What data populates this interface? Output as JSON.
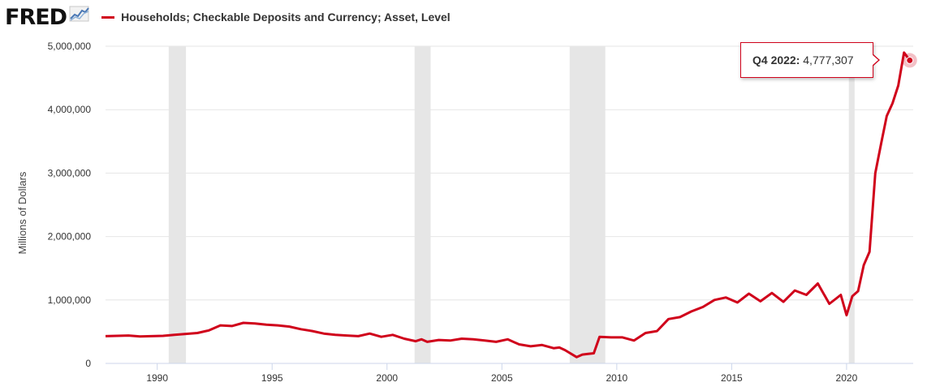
{
  "header": {
    "logo_text": "FRED",
    "series_label": "Households; Checkable Deposits and Currency; Asset, Level",
    "series_color": "#d0021b"
  },
  "tooltip": {
    "period": "Q4 2022:",
    "value": "4,777,307"
  },
  "chart_data": {
    "type": "line",
    "ylabel": "Millions of Dollars",
    "ylim": [
      0,
      5000000
    ],
    "xlim": [
      1987.75,
      2022.9
    ],
    "y_ticks": [
      0,
      1000000,
      2000000,
      3000000,
      4000000,
      5000000
    ],
    "y_tick_labels": [
      "0",
      "1,000,000",
      "2,000,000",
      "3,000,000",
      "4,000,000",
      "5,000,000"
    ],
    "x_ticks": [
      1990,
      1995,
      2000,
      2005,
      2010,
      2015,
      2020
    ],
    "x_tick_labels": [
      "1990",
      "1995",
      "2000",
      "2005",
      "2010",
      "2015",
      "2020"
    ],
    "grid": true,
    "line_color": "#d0021b",
    "recession_color": "#e6e6e6",
    "recessions": [
      [
        1990.5,
        1991.25
      ],
      [
        2001.2,
        2001.9
      ],
      [
        2007.95,
        2009.5
      ],
      [
        2020.1,
        2020.35
      ]
    ],
    "series": [
      {
        "x": [
          1987.75,
          1988.25,
          1988.75,
          1989.25,
          1989.75,
          1990.25,
          1990.75,
          1991.25,
          1991.75,
          1992.25,
          1992.75,
          1993.25,
          1993.75,
          1994.25,
          1994.75,
          1995.25,
          1995.75,
          1996.25,
          1996.75,
          1997.25,
          1997.75,
          1998.25,
          1998.75,
          1999.25,
          1999.75,
          2000.25,
          2000.75,
          2001.25,
          2001.5,
          2001.75,
          2002.25,
          2002.75,
          2003.25,
          2003.75,
          2004.25,
          2004.75,
          2005.25,
          2005.75,
          2006.25,
          2006.75,
          2007.25,
          2007.5,
          2007.75,
          2008.25,
          2008.5,
          2008.75,
          2009.0,
          2009.25,
          2009.75,
          2010.25,
          2010.75,
          2011.25,
          2011.75,
          2012.25,
          2012.75,
          2013.25,
          2013.75,
          2014.25,
          2014.75,
          2015.25,
          2015.75,
          2016.25,
          2016.75,
          2017.25,
          2017.75,
          2018.25,
          2018.75,
          2019.25,
          2019.5,
          2019.75,
          2020.0,
          2020.25,
          2020.5,
          2020.75,
          2021.0,
          2021.25,
          2021.5,
          2021.75,
          2022.0,
          2022.25,
          2022.5,
          2022.75
        ],
        "y": [
          430000,
          435000,
          440000,
          425000,
          430000,
          435000,
          450000,
          465000,
          480000,
          520000,
          600000,
          590000,
          640000,
          630000,
          610000,
          600000,
          580000,
          540000,
          510000,
          470000,
          450000,
          440000,
          430000,
          470000,
          420000,
          450000,
          390000,
          350000,
          380000,
          340000,
          370000,
          360000,
          390000,
          380000,
          360000,
          340000,
          380000,
          300000,
          270000,
          290000,
          240000,
          250000,
          210000,
          100000,
          140000,
          150000,
          160000,
          420000,
          410000,
          410000,
          360000,
          480000,
          510000,
          700000,
          730000,
          820000,
          890000,
          1000000,
          1040000,
          960000,
          1100000,
          980000,
          1110000,
          970000,
          1150000,
          1080000,
          1260000,
          940000,
          1010000,
          1080000,
          760000,
          1060000,
          1140000,
          1550000,
          1760000,
          3000000,
          3460000,
          3900000,
          4100000,
          4380000,
          4900000,
          4777307
        ]
      }
    ]
  }
}
